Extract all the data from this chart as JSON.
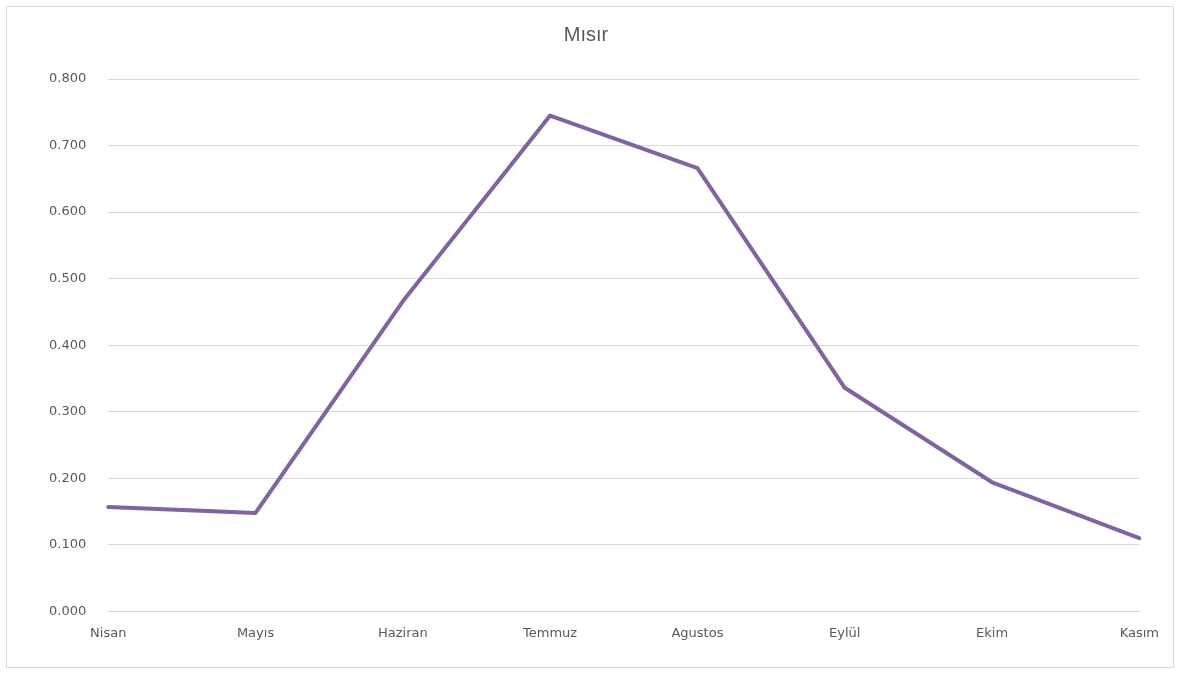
{
  "chart_data": {
    "type": "line",
    "title": "Mısır",
    "categories": [
      "Nisan",
      "Mayıs",
      "Haziran",
      "Temmuz",
      "Agustos",
      "Eylül",
      "Ekim",
      "Kasım"
    ],
    "series": [
      {
        "color": "#8064a2",
        "values": [
          0.157,
          0.148,
          0.466,
          0.745,
          0.666,
          0.336,
          0.194,
          0.11
        ]
      }
    ],
    "ylim": [
      0,
      0.8
    ],
    "yticks": [
      {
        "value": 0,
        "label": "0.000"
      },
      {
        "value": 0.1,
        "label": "0.100"
      },
      {
        "value": 0.2,
        "label": "0.200"
      },
      {
        "value": 0.3,
        "label": "0.300"
      },
      {
        "value": 0.4,
        "label": "0.400"
      },
      {
        "value": 0.5,
        "label": "0.500"
      },
      {
        "value": 0.6,
        "label": "0.600"
      },
      {
        "value": 0.7,
        "label": "0.700"
      },
      {
        "value": 0.8,
        "label": "0.800"
      }
    ],
    "grid": "y",
    "legend": false,
    "marker": "none",
    "line_style": "solid"
  }
}
